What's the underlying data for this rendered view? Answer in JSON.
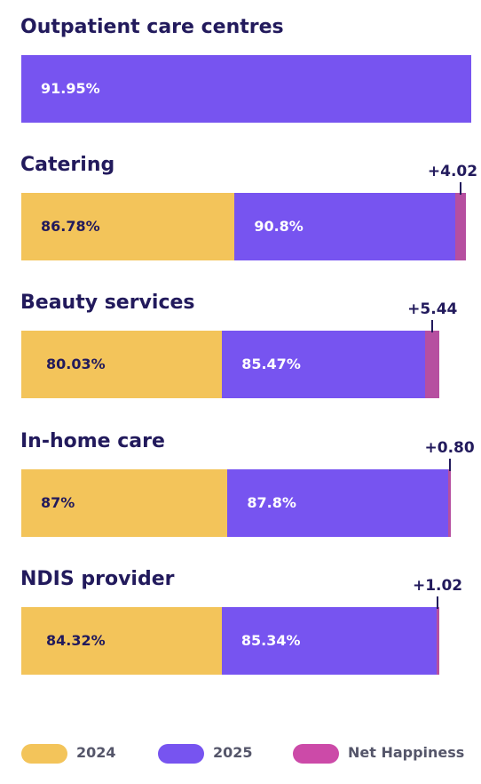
{
  "chart_data": {
    "type": "bar",
    "orientation": "horizontal-stacked",
    "scale_max": 91.95,
    "groups": [
      {
        "title": "Outpatient care centres",
        "label_2024": "",
        "label_2025": "91.95%",
        "net_label": "",
        "value_2024": null,
        "value_2025": 91.95,
        "net_happiness": null
      },
      {
        "title": "Catering",
        "label_2024": "86.78%",
        "label_2025": "90.8%",
        "net_label": "+4.02",
        "value_2024": 86.78,
        "value_2025": 90.8,
        "net_happiness": 4.02
      },
      {
        "title": "Beauty services",
        "label_2024": "80.03%",
        "label_2025": "85.47%",
        "net_label": "+5.44",
        "value_2024": 80.03,
        "value_2025": 85.47,
        "net_happiness": 5.44
      },
      {
        "title": "In-home care",
        "label_2024": "87%",
        "label_2025": "87.8%",
        "net_label": "+0.80",
        "value_2024": 87,
        "value_2025": 87.8,
        "net_happiness": 0.8
      },
      {
        "title": "NDIS provider",
        "label_2024": "84.32%",
        "label_2025": "85.34%",
        "net_label": "+1.02",
        "value_2024": 84.32,
        "value_2025": 85.34,
        "net_happiness": 1.02
      }
    ],
    "series": [
      {
        "name": "2024",
        "color": "#f3c45a"
      },
      {
        "name": "2025",
        "color": "#7754f0"
      },
      {
        "name": "Net Happiness",
        "color": "#cc4aa8"
      }
    ],
    "legend": "bottom"
  },
  "colors": {
    "title": "#221a5c",
    "label_on_2024": "#221a5c",
    "label_on_2025": "#ffffff",
    "net_happiness_bar": "#b64fa0",
    "legend_text": "#55566a"
  }
}
